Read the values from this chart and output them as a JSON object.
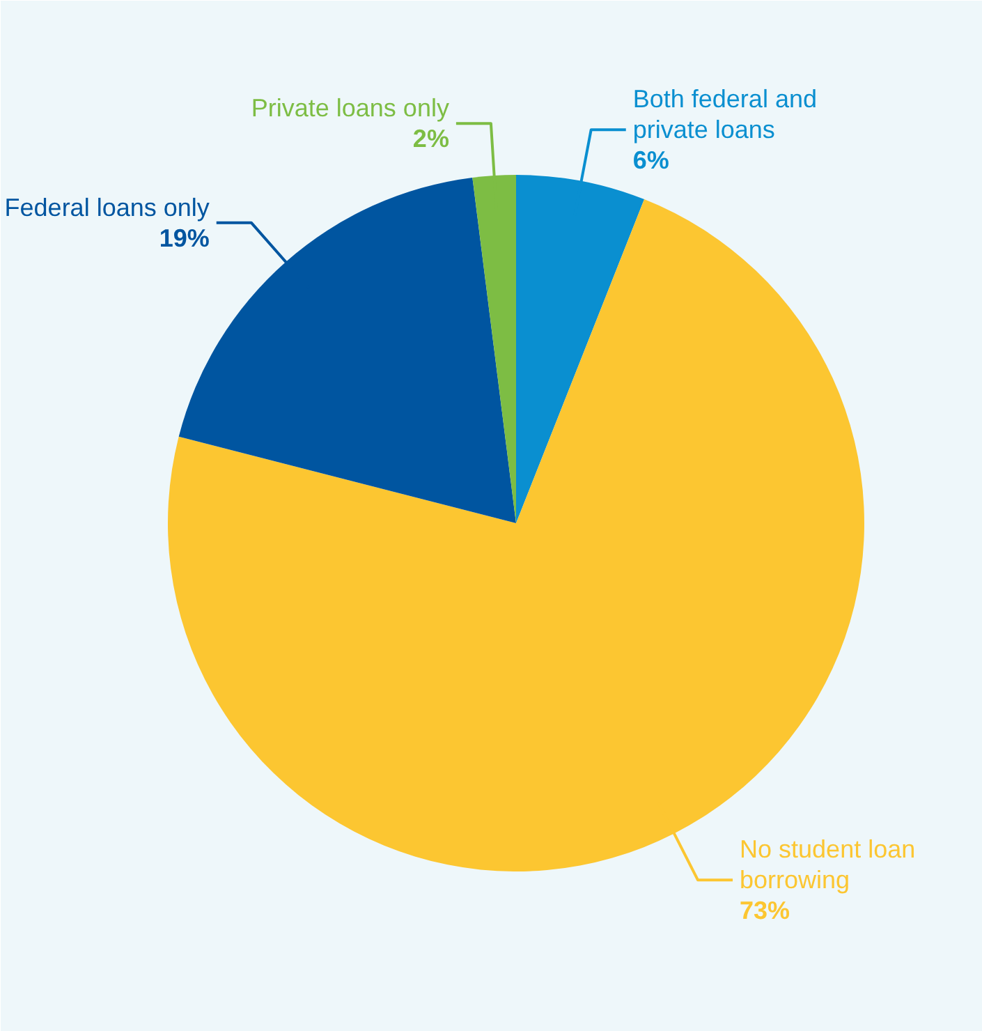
{
  "chart_data": {
    "type": "pie",
    "categories": [
      "Both federal and private loans",
      "No student loan borrowing",
      "Federal loans only",
      "Private loans only"
    ],
    "values": [
      6,
      73,
      19,
      2
    ],
    "colors": [
      "#0a8fd0",
      "#fcc631",
      "#0055a0",
      "#7dbd44"
    ],
    "value_labels": [
      "6%",
      "73%",
      "19%",
      "2%"
    ]
  }
}
